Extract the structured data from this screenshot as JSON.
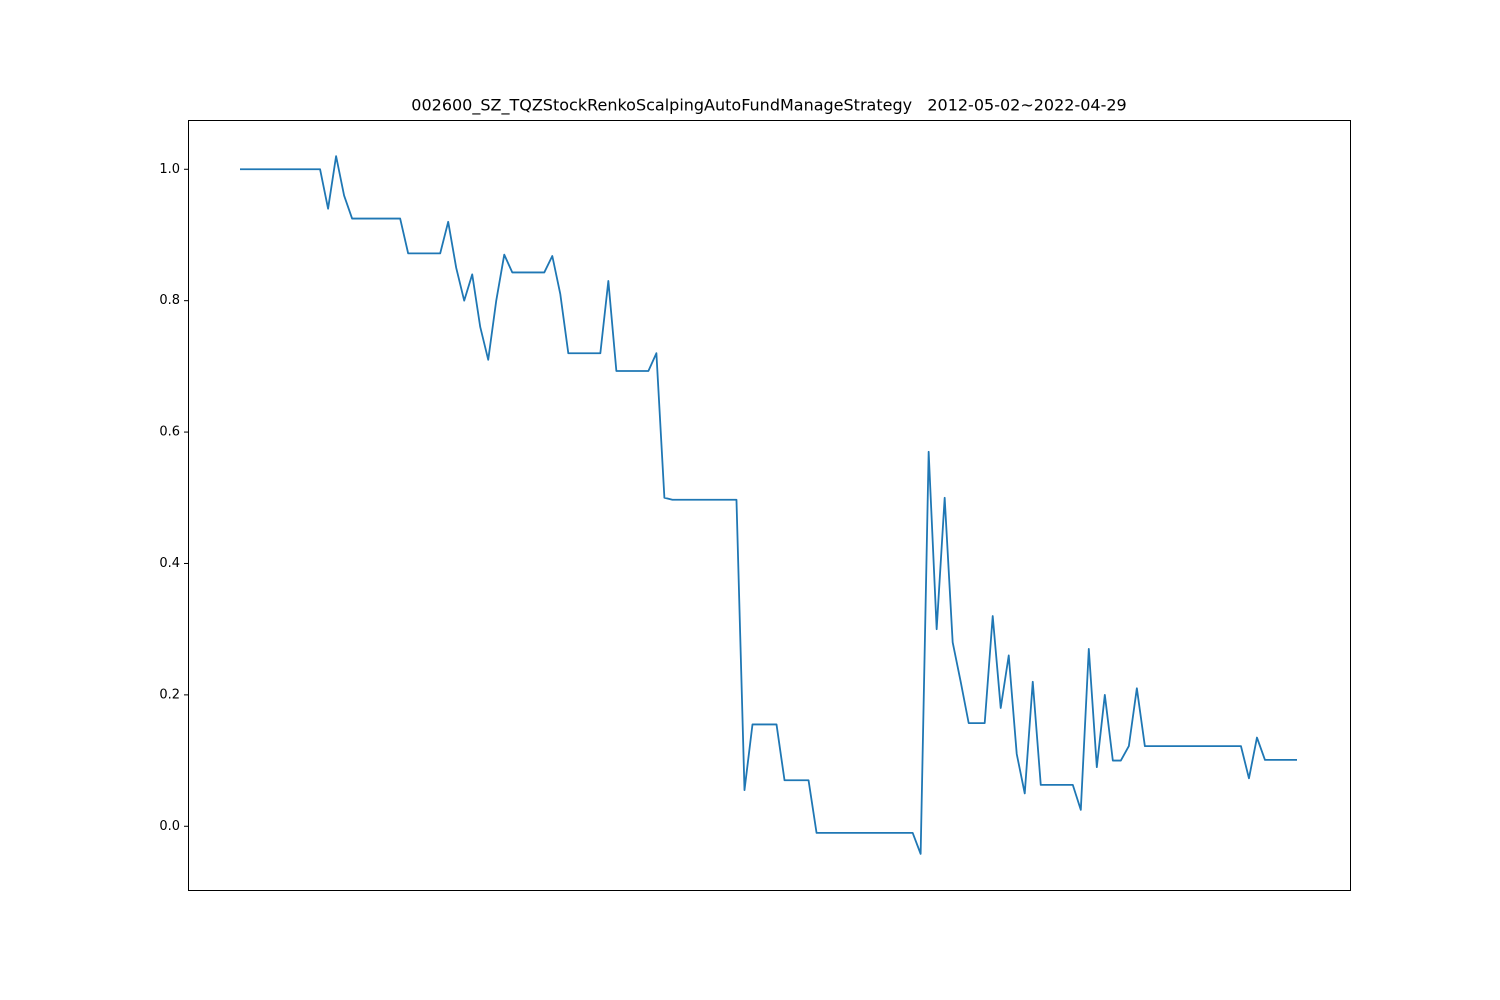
{
  "chart_data": {
    "type": "line",
    "title": "002600_SZ_TQZStockRenkoScalpingAutoFundManageStrategy   2012-05-02~2022-04-29",
    "color": "#1f77b4",
    "ylim": [
      -0.097,
      1.075
    ],
    "yticks": [
      {
        "value": 0,
        "label": "0.0"
      },
      0.2,
      0.4,
      0.6,
      0.8,
      {
        "value": 1,
        "label": "1.0"
      }
    ],
    "grid": false,
    "values": [
      1.0,
      1.0,
      1.0,
      1.0,
      1.0,
      1.0,
      1.0,
      1.0,
      1.0,
      1.0,
      1.0,
      0.94,
      1.02,
      0.96,
      0.925,
      0.925,
      0.925,
      0.925,
      0.925,
      0.925,
      0.925,
      0.872,
      0.872,
      0.872,
      0.872,
      0.872,
      0.92,
      0.85,
      0.8,
      0.84,
      0.76,
      0.71,
      0.8,
      0.87,
      0.843,
      0.843,
      0.843,
      0.843,
      0.843,
      0.868,
      0.81,
      0.72,
      0.72,
      0.72,
      0.72,
      0.72,
      0.83,
      0.693,
      0.693,
      0.693,
      0.693,
      0.693,
      0.72,
      0.5,
      0.497,
      0.497,
      0.497,
      0.497,
      0.497,
      0.497,
      0.497,
      0.497,
      0.497,
      0.055,
      0.155,
      0.155,
      0.155,
      0.155,
      0.07,
      0.07,
      0.07,
      0.07,
      -0.01,
      -0.01,
      -0.01,
      -0.01,
      -0.01,
      -0.01,
      -0.01,
      -0.01,
      -0.01,
      -0.01,
      -0.01,
      -0.01,
      -0.01,
      -0.042,
      0.57,
      0.3,
      0.5,
      0.28,
      0.22,
      0.157,
      0.157,
      0.157,
      0.32,
      0.18,
      0.26,
      0.11,
      0.05,
      0.22,
      0.063,
      0.063,
      0.063,
      0.063,
      0.063,
      0.025,
      0.27,
      0.09,
      0.2,
      0.1,
      0.1,
      0.122,
      0.21,
      0.122,
      0.122,
      0.122,
      0.122,
      0.122,
      0.122,
      0.122,
      0.122,
      0.122,
      0.122,
      0.122,
      0.122,
      0.122,
      0.073,
      0.135,
      0.101,
      0.101,
      0.101,
      0.101,
      0.101
    ]
  }
}
